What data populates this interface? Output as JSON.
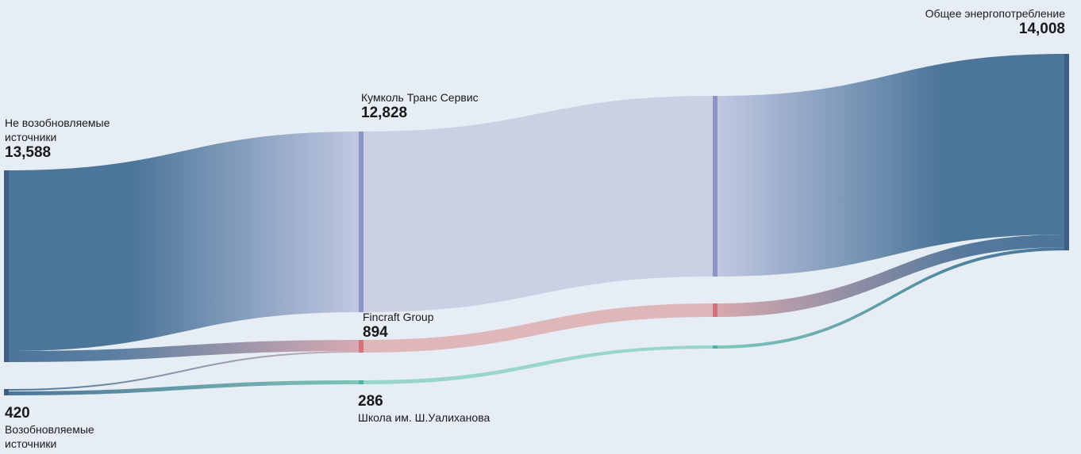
{
  "colors": {
    "background": "#e6edf4",
    "nonrenewable": "#4b7599",
    "renewable": "#4b7599",
    "kumkol": "#8c95c8",
    "fincraft": "#d4737a",
    "school": "#4fb3a3",
    "total": "#4b7599"
  },
  "nodes": {
    "nonrenewable": {
      "name": "Не возобновляемые источники",
      "value": "13,588"
    },
    "renewable": {
      "name": "Возобновляемые источники",
      "value": "420"
    },
    "kumkol": {
      "name": "Кумколь Транс Сервис",
      "value": "12,828"
    },
    "fincraft": {
      "name": "Fincraft Group",
      "value": "894"
    },
    "school": {
      "name": "Школа им. Ш.Уалиханова",
      "value": "286"
    },
    "total": {
      "name": "Общее энергопотребление",
      "value": "14,008"
    }
  },
  "chart_data": {
    "type": "sankey",
    "nodes": [
      "Не возобновляемые источники",
      "Возобновляемые источники",
      "Кумколь Транс Сервис",
      "Fincraft Group",
      "Школа им. Ш.Уалиханова",
      "Общее энергопотребление"
    ],
    "links": [
      {
        "source": "Не возобновляемые источники",
        "target": "Кумколь Транс Сервис",
        "value": 12828
      },
      {
        "source": "Не возобновляемые источники",
        "target": "Fincraft Group",
        "value": 760
      },
      {
        "source": "Возобновляемые источники",
        "target": "Fincraft Group",
        "value": 134
      },
      {
        "source": "Возобновляемые источники",
        "target": "Школа им. Ш.Уалиханова",
        "value": 286
      },
      {
        "source": "Кумколь Транс Сервис",
        "target": "Общее энергопотребление",
        "value": 12828
      },
      {
        "source": "Fincraft Group",
        "target": "Общее энергопотребление",
        "value": 894
      },
      {
        "source": "Школа им. Ш.Уалиханова",
        "target": "Общее энергопотребление",
        "value": 286
      }
    ]
  }
}
